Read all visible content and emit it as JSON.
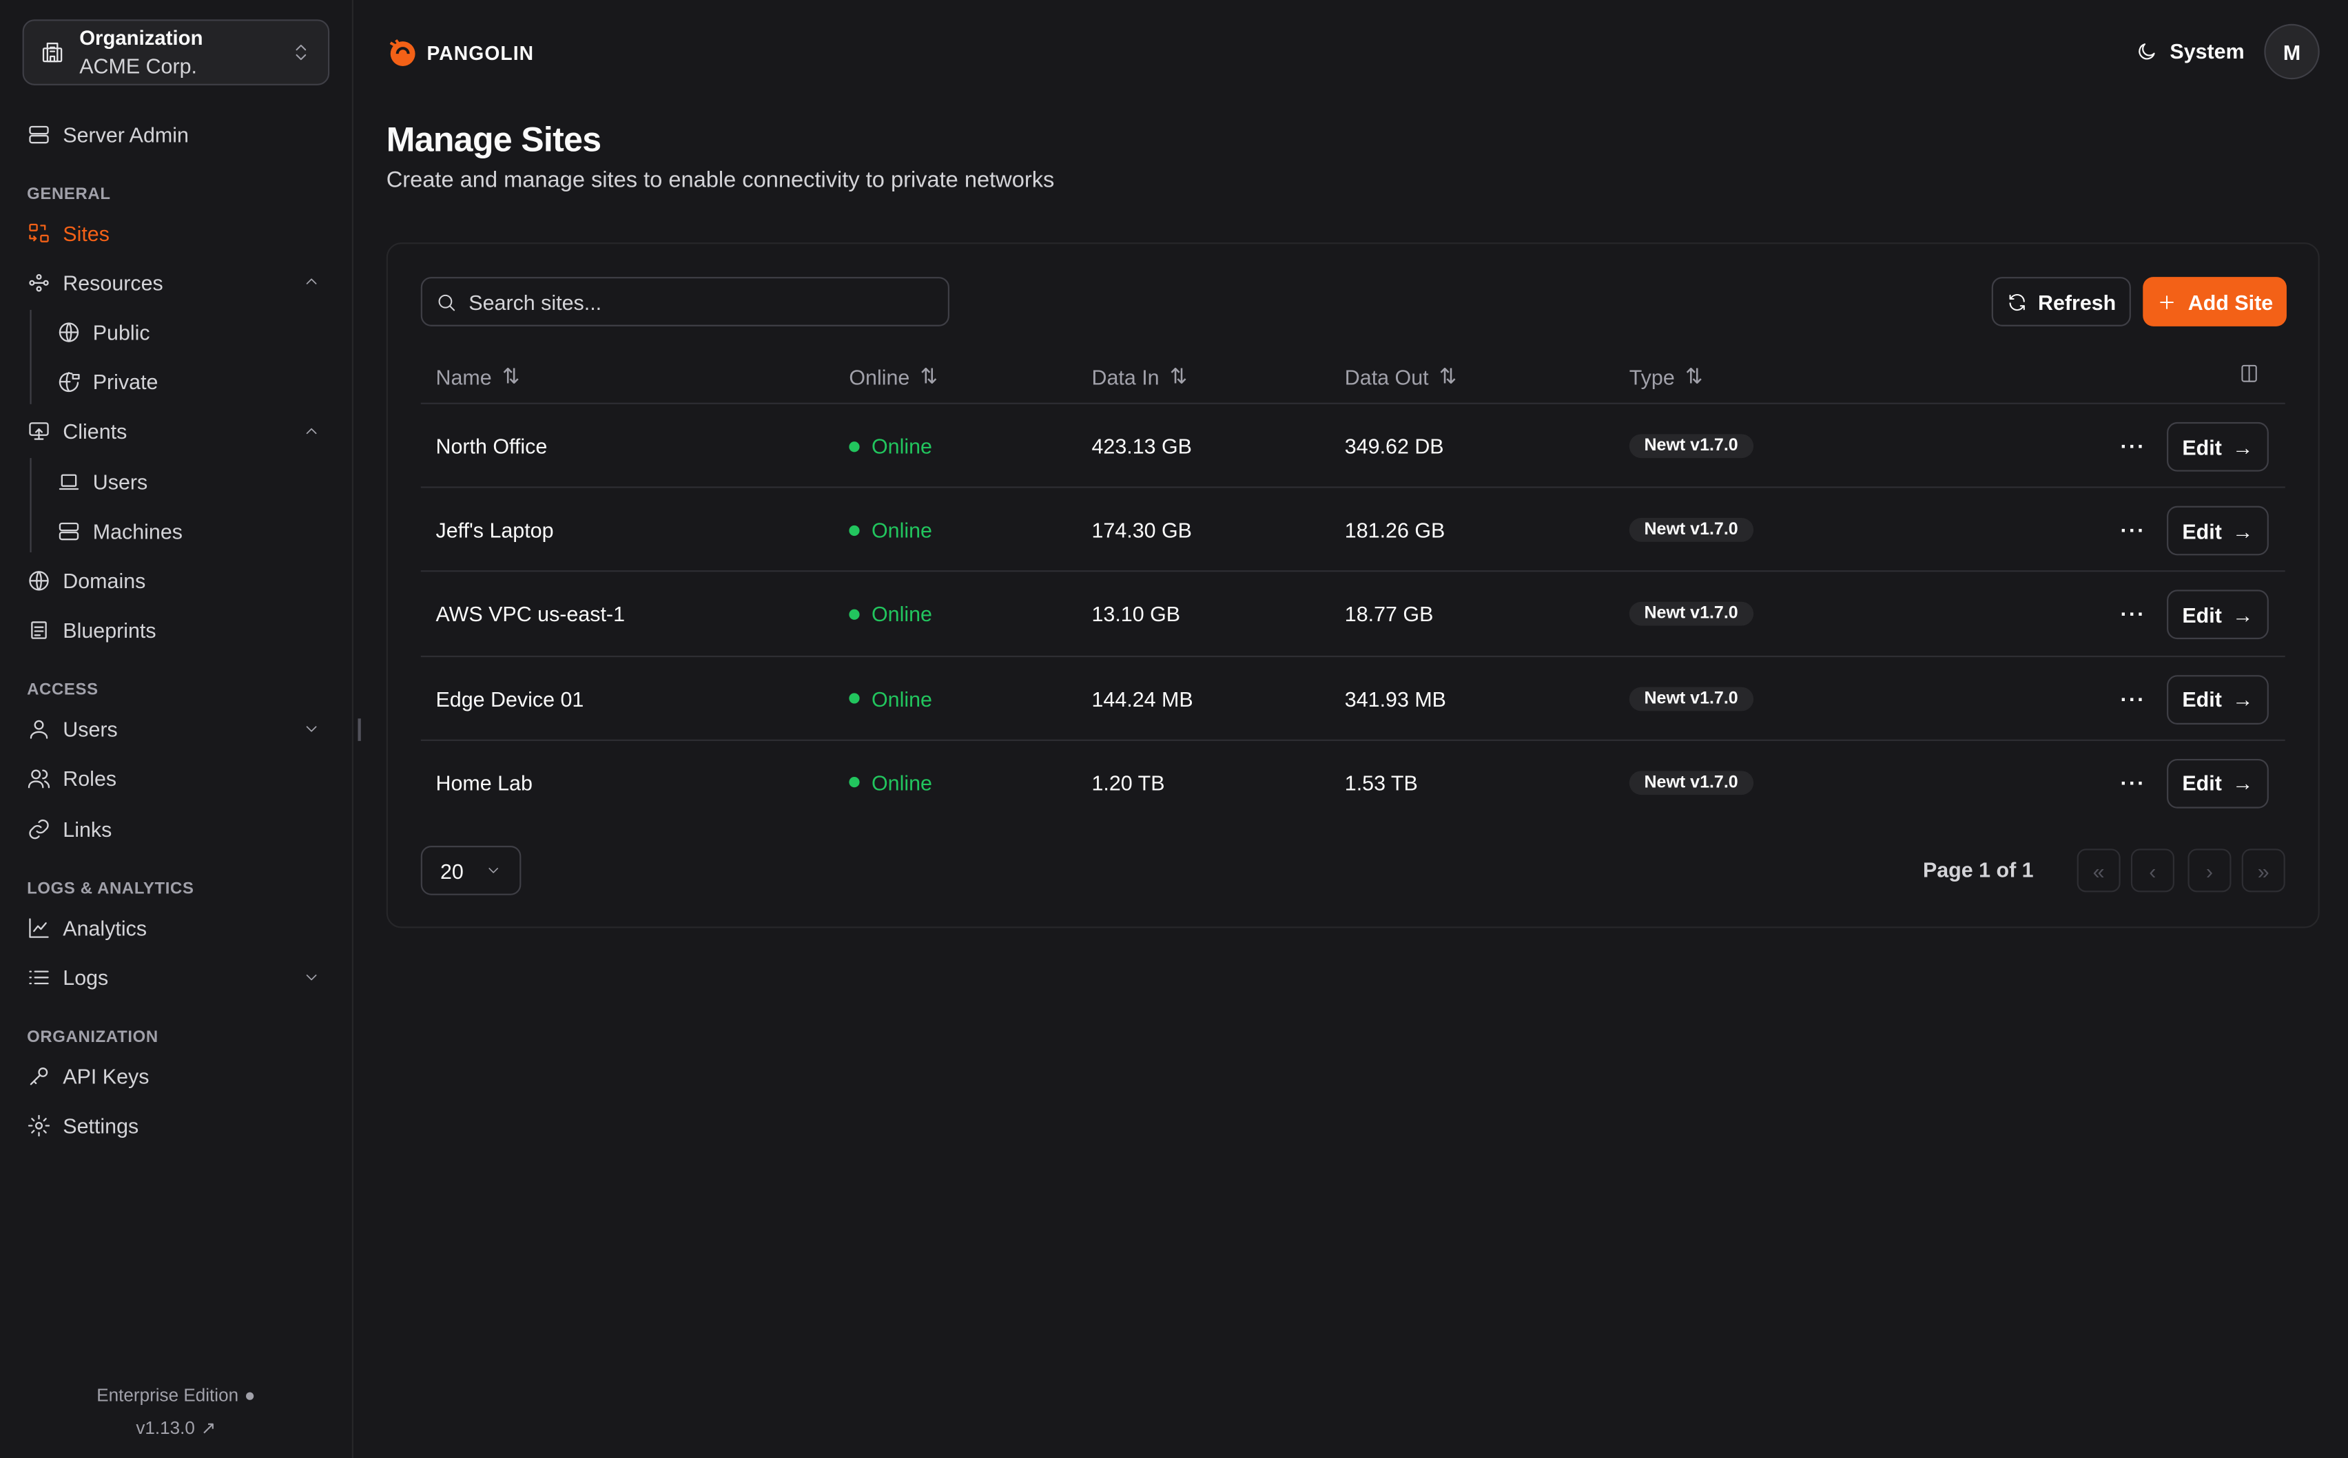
{
  "org": {
    "label": "Organization",
    "name": "ACME Corp."
  },
  "sidebar": {
    "server_admin": "Server Admin",
    "sections": {
      "general": "GENERAL",
      "access": "ACCESS",
      "logs": "LOGS & ANALYTICS",
      "organization": "ORGANIZATION"
    },
    "items": {
      "sites": "Sites",
      "resources": "Resources",
      "public": "Public",
      "private": "Private",
      "clients": "Clients",
      "client_users": "Users",
      "machines": "Machines",
      "domains": "Domains",
      "blueprints": "Blueprints",
      "users": "Users",
      "roles": "Roles",
      "links": "Links",
      "analytics": "Analytics",
      "logs": "Logs",
      "api_keys": "API Keys",
      "settings": "Settings"
    },
    "footer": {
      "edition": "Enterprise Edition",
      "version": "v1.13.0"
    }
  },
  "header": {
    "brand": "PANGOLIN",
    "theme": "System",
    "avatar": "M"
  },
  "page": {
    "title": "Manage Sites",
    "subtitle": "Create and manage sites to enable connectivity to private networks"
  },
  "toolbar": {
    "search_placeholder": "Search sites...",
    "refresh": "Refresh",
    "add": "Add Site"
  },
  "table": {
    "columns": [
      "Name",
      "Online",
      "Data In",
      "Data Out",
      "Type"
    ],
    "rows": [
      {
        "name": "North Office",
        "status": "Online",
        "data_in": "423.13 GB",
        "data_out": "349.62 DB",
        "type": "Newt v1.7.0"
      },
      {
        "name": "Jeff's Laptop",
        "status": "Online",
        "data_in": "174.30 GB",
        "data_out": "181.26 GB",
        "type": "Newt v1.7.0"
      },
      {
        "name": "AWS VPC us-east-1",
        "status": "Online",
        "data_in": "13.10 GB",
        "data_out": "18.77 GB",
        "type": "Newt v1.7.0"
      },
      {
        "name": "Edge Device 01",
        "status": "Online",
        "data_in": "144.24 MB",
        "data_out": "341.93 MB",
        "type": "Newt v1.7.0"
      },
      {
        "name": "Home Lab",
        "status": "Online",
        "data_in": "1.20 TB",
        "data_out": "1.53 TB",
        "type": "Newt v1.7.0"
      }
    ],
    "edit_label": "Edit"
  },
  "pagination": {
    "page_size": "20",
    "page_text": "Page 1 of 1"
  },
  "colors": {
    "accent": "#f36117",
    "online": "#22c55e",
    "background": "#18181b"
  }
}
